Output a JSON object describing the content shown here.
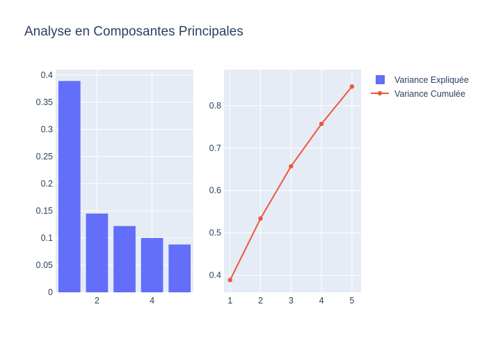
{
  "title": "Analyse en Composantes Principales",
  "colors": {
    "plot_bg": "#e5ecf6",
    "grid": "#ffffff",
    "text": "#2a3f5f",
    "bar": "#636efa",
    "line": "#ef553b"
  },
  "legend": {
    "bar_label": "Variance Expliquée",
    "line_label": "Variance Cumulée",
    "placement": "top-right"
  },
  "chart_data": [
    {
      "type": "bar",
      "series": [
        {
          "name": "Variance Expliquée",
          "x": [
            1,
            2,
            3,
            4,
            5
          ],
          "values": [
            0.389,
            0.145,
            0.122,
            0.1,
            0.088
          ]
        }
      ],
      "xlim": [
        0.5,
        5.5
      ],
      "ylim": [
        0,
        0.41
      ],
      "xticks": [
        2,
        4
      ],
      "yticks": [
        0,
        0.05,
        0.1,
        0.15,
        0.2,
        0.25,
        0.3,
        0.35,
        0.4
      ],
      "xtick_labels": [
        "2",
        "4"
      ],
      "ytick_labels": [
        "0",
        "0.05",
        "0.1",
        "0.15",
        "0.2",
        "0.25",
        "0.3",
        "0.35",
        "0.4"
      ],
      "grid": true
    },
    {
      "type": "line",
      "series": [
        {
          "name": "Variance Cumulée",
          "x": [
            1,
            2,
            3,
            4,
            5
          ],
          "values": [
            0.389,
            0.534,
            0.657,
            0.757,
            0.845
          ]
        }
      ],
      "xlim": [
        0.8,
        5.3
      ],
      "ylim": [
        0.36,
        0.885
      ],
      "xticks": [
        1,
        2,
        3,
        4,
        5
      ],
      "yticks": [
        0.4,
        0.5,
        0.6,
        0.7,
        0.8
      ],
      "xtick_labels": [
        "1",
        "2",
        "3",
        "4",
        "5"
      ],
      "ytick_labels": [
        "0.4",
        "0.5",
        "0.6",
        "0.7",
        "0.8"
      ],
      "grid": true
    }
  ]
}
